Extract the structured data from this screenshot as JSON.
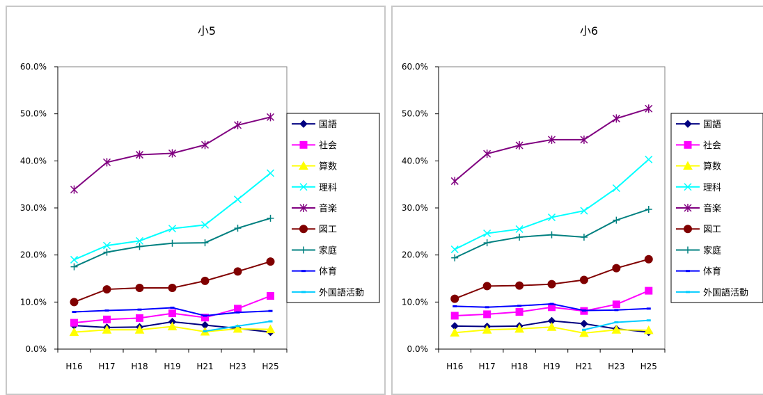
{
  "chart_data": [
    {
      "type": "line",
      "title": "小5",
      "categories": [
        "H16",
        "H17",
        "H18",
        "H19",
        "H21",
        "H23",
        "H25"
      ],
      "ylim": [
        0,
        60
      ],
      "yticks": [
        "0.0%",
        "10.0%",
        "20.0%",
        "30.0%",
        "40.0%",
        "50.0%",
        "60.0%"
      ],
      "legend_position": "right",
      "series": [
        {
          "name": "国語",
          "color": "#000080",
          "marker": "diamond",
          "values": [
            5.0,
            4.6,
            4.7,
            5.8,
            5.1,
            4.4,
            3.6
          ]
        },
        {
          "name": "社会",
          "color": "#FF00FF",
          "marker": "square",
          "values": [
            5.6,
            6.3,
            6.6,
            7.6,
            6.7,
            8.6,
            11.3
          ]
        },
        {
          "name": "算数",
          "color": "#FFFF00",
          "marker": "triangle",
          "values": [
            3.6,
            4.1,
            4.1,
            4.8,
            3.7,
            4.3,
            4.2
          ]
        },
        {
          "name": "理科",
          "color": "#00FFFF",
          "marker": "x",
          "values": [
            19.0,
            22.0,
            23.0,
            25.6,
            26.4,
            31.8,
            37.4
          ]
        },
        {
          "name": "音楽",
          "color": "#800080",
          "marker": "star",
          "values": [
            33.9,
            39.7,
            41.3,
            41.6,
            43.4,
            47.6,
            49.3
          ]
        },
        {
          "name": "図工",
          "color": "#800000",
          "marker": "circle",
          "values": [
            10.0,
            12.7,
            13.0,
            13.0,
            14.5,
            16.5,
            18.6
          ]
        },
        {
          "name": "家庭",
          "color": "#008080",
          "marker": "plus",
          "values": [
            17.5,
            20.6,
            21.8,
            22.5,
            22.6,
            25.7,
            27.8
          ]
        },
        {
          "name": "体育",
          "color": "#0000FF",
          "marker": "dash",
          "values": [
            7.9,
            8.2,
            8.4,
            8.8,
            7.1,
            7.8,
            8.1
          ]
        },
        {
          "name": "外国語活動",
          "color": "#00CCFF",
          "marker": "dash",
          "values": [
            null,
            null,
            null,
            null,
            3.8,
            4.9,
            5.9
          ]
        }
      ]
    },
    {
      "type": "line",
      "title": "小6",
      "categories": [
        "H16",
        "H17",
        "H18",
        "H19",
        "H21",
        "H23",
        "H25"
      ],
      "ylim": [
        0,
        60
      ],
      "yticks": [
        "0.0%",
        "10.0%",
        "20.0%",
        "30.0%",
        "40.0%",
        "50.0%",
        "60.0%"
      ],
      "legend_position": "right",
      "series": [
        {
          "name": "国語",
          "color": "#000080",
          "marker": "diamond",
          "values": [
            4.9,
            4.8,
            4.9,
            6.0,
            5.4,
            4.3,
            3.6
          ]
        },
        {
          "name": "社会",
          "color": "#FF00FF",
          "marker": "square",
          "values": [
            7.1,
            7.4,
            7.9,
            8.9,
            8.1,
            9.5,
            12.4
          ]
        },
        {
          "name": "算数",
          "color": "#FFFF00",
          "marker": "triangle",
          "values": [
            3.5,
            4.1,
            4.3,
            4.7,
            3.4,
            4.1,
            4.0
          ]
        },
        {
          "name": "理科",
          "color": "#00FFFF",
          "marker": "x",
          "values": [
            21.2,
            24.6,
            25.5,
            28.0,
            29.4,
            34.2,
            40.3
          ]
        },
        {
          "name": "音楽",
          "color": "#800080",
          "marker": "star",
          "values": [
            35.7,
            41.5,
            43.3,
            44.5,
            44.5,
            49.0,
            51.1
          ]
        },
        {
          "name": "図工",
          "color": "#800000",
          "marker": "circle",
          "values": [
            10.7,
            13.4,
            13.5,
            13.8,
            14.7,
            17.2,
            19.1
          ]
        },
        {
          "name": "家庭",
          "color": "#008080",
          "marker": "plus",
          "values": [
            19.4,
            22.6,
            23.8,
            24.3,
            23.8,
            27.4,
            29.7
          ]
        },
        {
          "name": "体育",
          "color": "#0000FF",
          "marker": "dash",
          "values": [
            9.1,
            8.9,
            9.2,
            9.6,
            8.2,
            8.3,
            8.6
          ]
        },
        {
          "name": "外国語活動",
          "color": "#00CCFF",
          "marker": "dash",
          "values": [
            null,
            null,
            null,
            null,
            4.1,
            5.7,
            6.1
          ]
        }
      ]
    }
  ]
}
